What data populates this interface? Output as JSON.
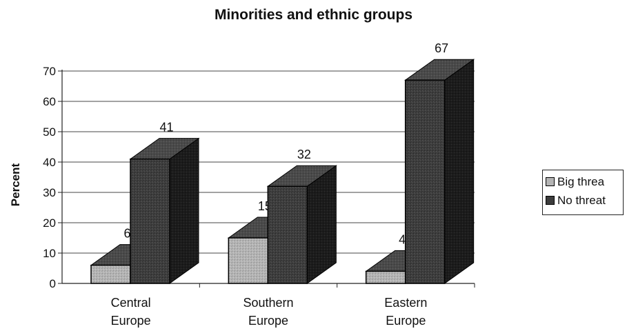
{
  "chart_data": {
    "type": "bar",
    "title": "Minorities and ethnic groups",
    "xlabel": "",
    "ylabel": "Percent",
    "categories": [
      [
        "Central",
        "Europe"
      ],
      [
        "Southern",
        "Europe"
      ],
      [
        "Eastern",
        "Europe"
      ]
    ],
    "series": [
      {
        "name": "Big threa",
        "values": [
          6,
          15,
          4
        ],
        "color": "#a8a8a8"
      },
      {
        "name": "No threat",
        "values": [
          41,
          32,
          67
        ],
        "color": "#3a3a3a"
      }
    ],
    "ylim": [
      0,
      70
    ],
    "yticks": [
      0,
      10,
      20,
      30,
      40,
      50,
      60,
      70
    ],
    "grid": true,
    "legend_position": "right",
    "style": "3d-column"
  }
}
